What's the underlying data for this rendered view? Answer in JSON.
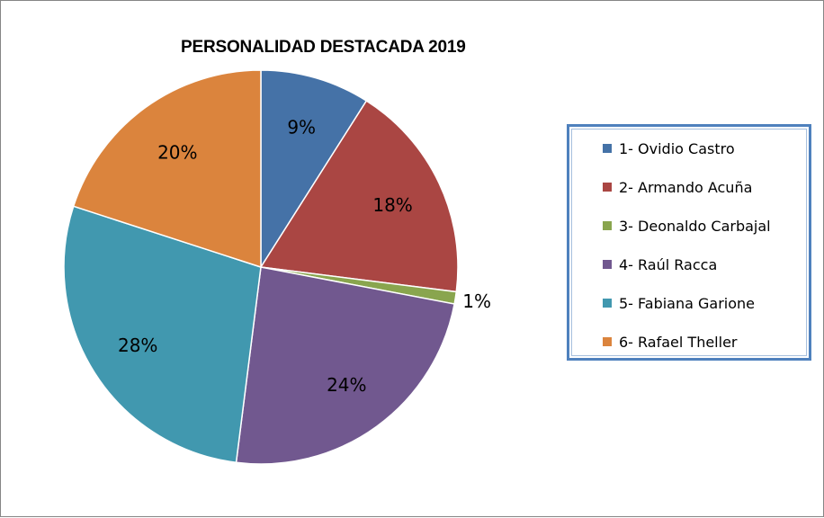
{
  "chart_data": {
    "type": "pie",
    "title": "PERSONALIDAD DESTACADA 2019",
    "legend_position": "right",
    "slices": [
      {
        "name": "1- Ovidio Castro",
        "value": 9,
        "label": "9%",
        "color": "#4572a7"
      },
      {
        "name": "2- Armando Acuña",
        "value": 18,
        "label": "18%",
        "color": "#aa4643"
      },
      {
        "name": "3- Deonaldo Carbajal",
        "value": 1,
        "label": "1%",
        "color": "#89a54e"
      },
      {
        "name": "4- Raúl Racca",
        "value": 24,
        "label": "24%",
        "color": "#71588f"
      },
      {
        "name": "5- Fabiana Garione",
        "value": 28,
        "label": "28%",
        "color": "#4198af"
      },
      {
        "name": "6- Rafael Theller",
        "value": 20,
        "label": "20%",
        "color": "#db843d"
      }
    ]
  }
}
